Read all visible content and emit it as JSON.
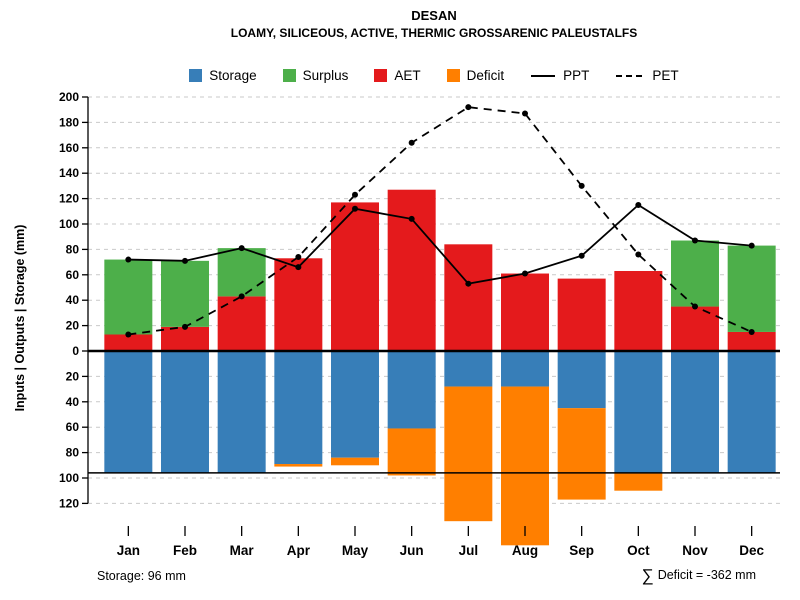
{
  "header": {
    "title": "DESAN",
    "subtitle": "LOAMY, SILICEOUS, ACTIVE, THERMIC GROSSARENIC PALEUSTALFS"
  },
  "footer": {
    "storage_note": "Storage: 96 mm",
    "sigma": "∑",
    "deficit_note": "Deficit = -362 mm"
  },
  "colors": {
    "storage": "#377EB8",
    "surplus": "#4DAF4A",
    "aet": "#E41A1C",
    "deficit": "#FF7F00",
    "line": "#000000",
    "grid": "#C9C9C9"
  },
  "chart_data": {
    "type": "bar",
    "title": "DESAN",
    "subtitle": "LOAMY, SILICEOUS, ACTIVE, THERMIC GROSSARENIC PALEUSTALFS",
    "ylabel": "Inputs | Outputs | Storage (mm)",
    "categories": [
      "Jan",
      "Feb",
      "Mar",
      "Apr",
      "May",
      "Jun",
      "Jul",
      "Aug",
      "Sep",
      "Oct",
      "Nov",
      "Dec"
    ],
    "y_ticks_up": [
      0,
      20,
      40,
      60,
      80,
      100,
      120,
      140,
      160,
      180,
      200
    ],
    "y_ticks_down": [
      20,
      40,
      60,
      80,
      100,
      120
    ],
    "ylim": [
      -145,
      200
    ],
    "grid": "horizontal-dashed",
    "legend": [
      "Storage",
      "Surplus",
      "AET",
      "Deficit",
      "PPT",
      "PET"
    ],
    "legend_position": "top",
    "storage_capacity_mm": 96,
    "total_deficit_mm": -362,
    "series": [
      {
        "name": "Storage",
        "type": "bar",
        "direction": "down",
        "color": "#377EB8",
        "values": [
          96,
          96,
          96,
          89,
          84,
          61,
          28,
          28,
          45,
          96,
          96,
          96
        ]
      },
      {
        "name": "Surplus",
        "type": "bar",
        "direction": "up",
        "stacked_on": "AET",
        "color": "#4DAF4A",
        "values": [
          59,
          52,
          38,
          0,
          0,
          0,
          0,
          0,
          0,
          0,
          52,
          68
        ]
      },
      {
        "name": "AET",
        "type": "bar",
        "direction": "up",
        "color": "#E41A1C",
        "values": [
          13,
          19,
          43,
          73,
          117,
          127,
          84,
          61,
          57,
          63,
          35,
          15
        ]
      },
      {
        "name": "Deficit",
        "type": "bar",
        "direction": "down",
        "stacked_on": "Storage",
        "color": "#FF7F00",
        "values": [
          0,
          0,
          0,
          2,
          6,
          37,
          106,
          125,
          72,
          14,
          0,
          0
        ]
      },
      {
        "name": "PPT",
        "type": "line",
        "style": "solid",
        "color": "#000000",
        "values": [
          72,
          71,
          81,
          66,
          112,
          104,
          53,
          61,
          75,
          115,
          87,
          83
        ]
      },
      {
        "name": "PET",
        "type": "line",
        "style": "dashed",
        "color": "#000000",
        "values": [
          13,
          19,
          43,
          74,
          123,
          164,
          192,
          187,
          130,
          76,
          35,
          15
        ]
      }
    ]
  }
}
